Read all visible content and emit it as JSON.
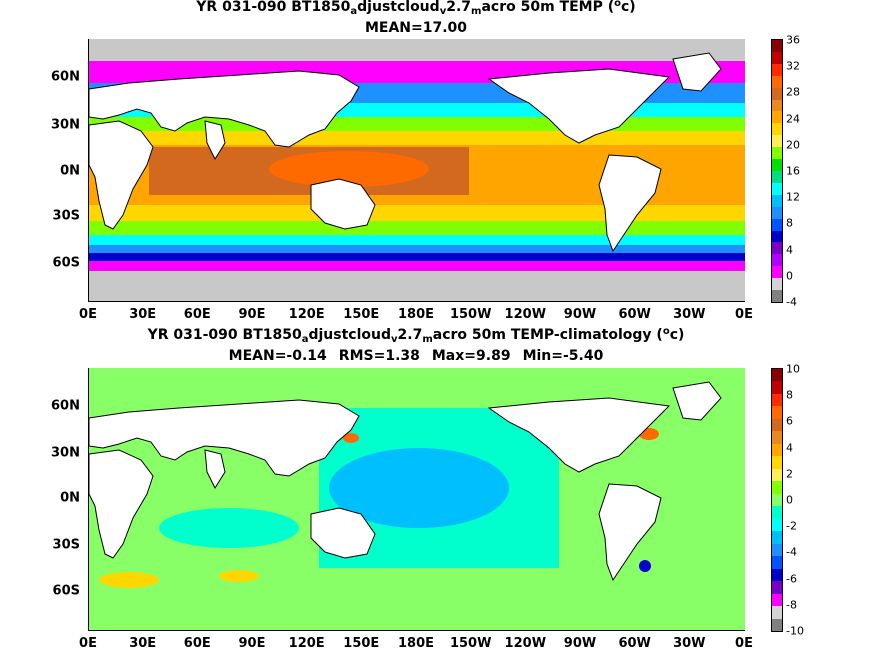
{
  "panels": [
    {
      "title_parts": {
        "p1": "YR 031-090 BT1850",
        "s1": "a",
        "p2": "djustcloud",
        "s2": "v",
        "p3": "2.7",
        "s3": "m",
        "p4": "acro 50m TEMP (",
        "sup": "o",
        "p5": "c)"
      },
      "stats": [
        "MEAN=17.00"
      ],
      "colorbar": {
        "labels": [
          "36",
          "32",
          "28",
          "24",
          "20",
          "16",
          "12",
          "8",
          "4",
          "0",
          "-4"
        ],
        "colors": [
          "#8b0000",
          "#c00000",
          "#ff2a00",
          "#ff6a00",
          "#d2691e",
          "#e88a1f",
          "#ffa500",
          "#ffd700",
          "#ffee55",
          "#80ff00",
          "#00e000",
          "#00dd88",
          "#00ffff",
          "#00bfff",
          "#1e90ff",
          "#0055ff",
          "#0000cd",
          "#7a00c8",
          "#b000ff",
          "#ff00ff",
          "#d3d3d3",
          "#808080"
        ]
      }
    },
    {
      "title_parts": {
        "p1": "YR 031-090 BT1850",
        "s1": "a",
        "p2": "djustcloud",
        "s2": "v",
        "p3": "2.7",
        "s3": "m",
        "p4": "acro 50m TEMP-climatology (",
        "sup": "o",
        "p5": "c)"
      },
      "stats": [
        "MEAN=-0.14",
        "RMS=1.38",
        "Max=9.89",
        "Min=-5.40"
      ],
      "colorbar": {
        "labels": [
          "10",
          "8",
          "6",
          "4",
          "2",
          "0",
          "-2",
          "-4",
          "-6",
          "-8",
          "-10"
        ],
        "colors": [
          "#8b0000",
          "#c00000",
          "#ff2a00",
          "#ff6a00",
          "#d2691e",
          "#e88a1f",
          "#ffa500",
          "#ffd700",
          "#ffee55",
          "#80ff00",
          "#88ff66",
          "#00ffcc",
          "#00ffff",
          "#00bfff",
          "#1e90ff",
          "#0055ff",
          "#0000cd",
          "#7a00c8",
          "#ff00ff",
          "#d3d3d3",
          "#808080"
        ]
      }
    }
  ],
  "axes": {
    "x_ticks": [
      "0E",
      "30E",
      "60E",
      "90E",
      "120E",
      "150E",
      "180E",
      "150W",
      "120W",
      "90W",
      "60W",
      "30W",
      "0E"
    ],
    "y_ticks": [
      "60N",
      "30N",
      "0N",
      "30S",
      "60S"
    ]
  },
  "colors": {
    "land": "#ffffff",
    "coast": "#000000",
    "ice": "#c8c8c8"
  }
}
